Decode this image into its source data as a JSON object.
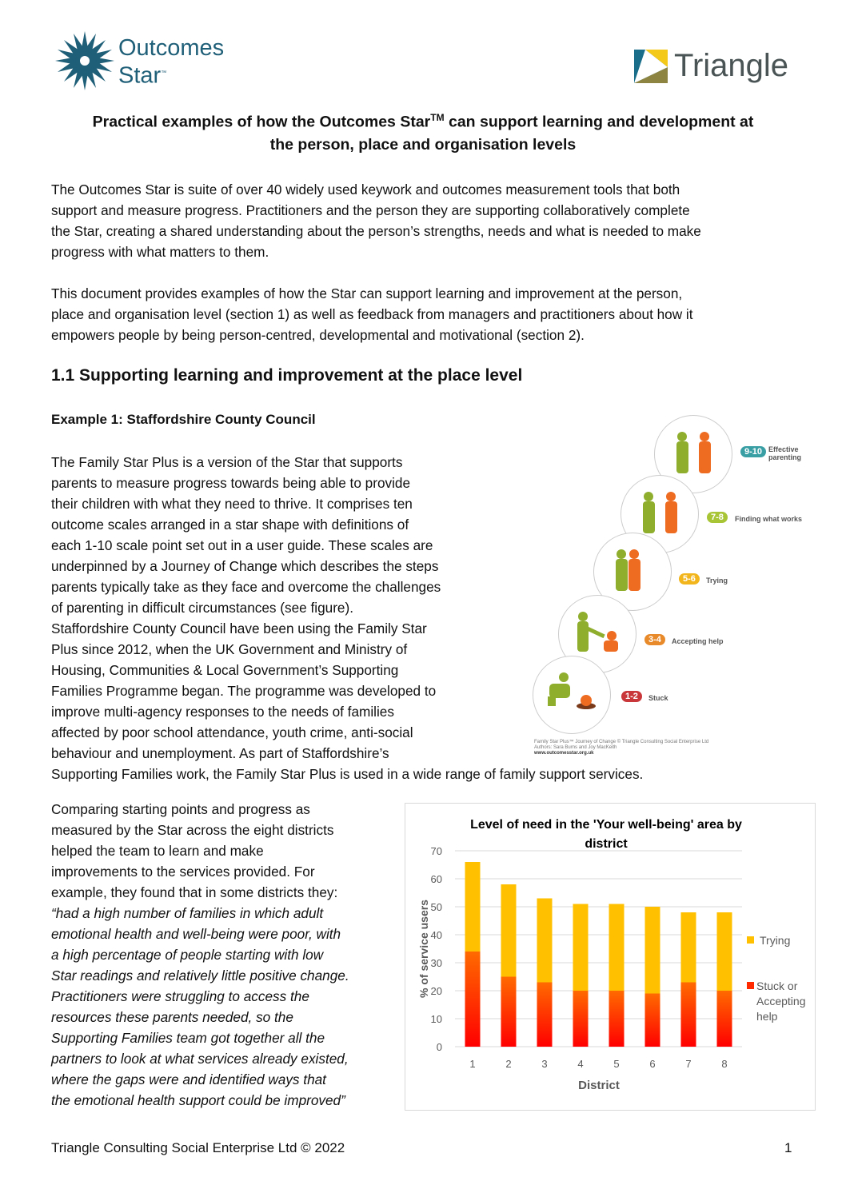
{
  "logos": {
    "left": "Outcomes Star",
    "left_tm": "™",
    "right": "Triangle"
  },
  "title": {
    "line1": "Practical examples of how the Outcomes Star",
    "tm": "TM",
    "line1b": " can support learning and development at",
    "line2": "the person, place and organisation levels"
  },
  "intro": [
    "The Outcomes Star is suite of over 40 widely used keywork and outcomes measurement tools that both",
    "support and measure progress. Practitioners and the person they are supporting collaboratively complete",
    "the Star, creating a shared understanding about the person’s strengths, needs and what is needed to make",
    "progress with what matters to them."
  ],
  "intro2": [
    "This document provides examples of how the Star can support learning and improvement at the person,",
    "place and organisation level (section 1) as well as feedback from managers and practitioners about how it",
    "empowers people by being person-centred, developmental and motivational (section 2)."
  ],
  "section_heading": "1.1 Supporting learning and improvement at the place level",
  "example_heading": "Example 1: Staffordshire County Council",
  "example_text": [
    "The Family Star Plus is a version of the Star that supports",
    "parents to measure progress towards being able to provide",
    "their children with what they need to thrive.  It comprises ten",
    "outcome scales arranged in a star shape with definitions of",
    "each 1-10 scale point set out in a user guide.  These scales are",
    "underpinned by a Journey of Change which describes the steps",
    "parents typically take as they face and overcome the challenges",
    "of parenting in difficult circumstances (see figure).",
    "Staffordshire County Council have been using the Family Star",
    "Plus since 2012, when the UK Government and Ministry of",
    "Housing, Communities & Local Government’s Supporting",
    "Families Programme began.  The programme was developed to",
    "improve multi-agency responses to the needs of families",
    "affected by poor school attendance, youth crime, anti-social",
    "behaviour and unemployment. As part of Staffordshire’s",
    "Supporting Families work, the Family Star Plus is used in a wide range of family support services."
  ],
  "figure": {
    "stages": [
      {
        "range": "9-10",
        "label": "Effective parenting",
        "color": "#3a9ea5"
      },
      {
        "range": "7-8",
        "label": "Finding what works",
        "color": "#a8c536"
      },
      {
        "range": "5-6",
        "label": "Trying",
        "color": "#f2b51c"
      },
      {
        "range": "3-4",
        "label": "Accepting help",
        "color": "#e98a2a"
      },
      {
        "range": "1-2",
        "label": "Stuck",
        "color": "#c9373a"
      }
    ],
    "caption": [
      "Family Star Plus™ Journey of Change © Triangle Consulting Social Enterprise Ltd",
      "Authors: Sara Burns and Joy MacKeith",
      "www.outcomesstar.org.uk"
    ]
  },
  "comparison_text": [
    {
      "t": "Comparing starting points and progress as",
      "i": false
    },
    {
      "t": "measured by the Star across the eight districts",
      "i": false
    },
    {
      "t": "helped the team to learn and make",
      "i": false
    },
    {
      "t": "improvements to the services provided. For",
      "i": false
    },
    {
      "t": "example, they found that in some districts they:",
      "i": false
    },
    {
      "t": "“had a high number of families in which adult",
      "i": true
    },
    {
      "t": "emotional health and well-being were poor, with",
      "i": true
    },
    {
      "t": "a high percentage of people starting with low",
      "i": true
    },
    {
      "t": "Star readings and relatively little positive change.",
      "i": true
    },
    {
      "t": "Practitioners were struggling to access the",
      "i": true
    },
    {
      "t": "resources these parents needed, so the",
      "i": true
    },
    {
      "t": "Supporting Families team got together all the",
      "i": true
    },
    {
      "t": "partners to look at what services already existed,",
      "i": true
    },
    {
      "t": "where the gaps were and identified ways that",
      "i": true
    },
    {
      "t": "the emotional health support could be improved”",
      "i": true
    }
  ],
  "chart_data": {
    "type": "bar",
    "stacked": true,
    "title": "Level of need in the 'Your well-being' area by district",
    "title_lines": [
      "Level of need in the 'Your well-being' area by",
      "district"
    ],
    "xlabel": "District",
    "ylabel": "% of service users",
    "categories": [
      "1",
      "2",
      "3",
      "4",
      "5",
      "6",
      "7",
      "8"
    ],
    "ylim": [
      0,
      70
    ],
    "yticks": [
      "0",
      "10",
      "20",
      "30",
      "40",
      "50",
      "60",
      "70"
    ],
    "grid": true,
    "legend": "right",
    "series": [
      {
        "name": "Stuck or Accepting help",
        "legend_lines": [
          "Stuck or",
          "Accepting",
          "help"
        ],
        "values": [
          34,
          25,
          23,
          20,
          20,
          19,
          23,
          20
        ],
        "color": "#ff2a00"
      },
      {
        "name": "Trying",
        "legend_lines": [
          "Trying"
        ],
        "values": [
          32,
          33,
          30,
          31,
          31,
          31,
          25,
          28
        ],
        "color": "#ffc000"
      }
    ]
  },
  "footer": {
    "left": "Triangle Consulting Social Enterprise Ltd © 2022",
    "page": "1"
  }
}
